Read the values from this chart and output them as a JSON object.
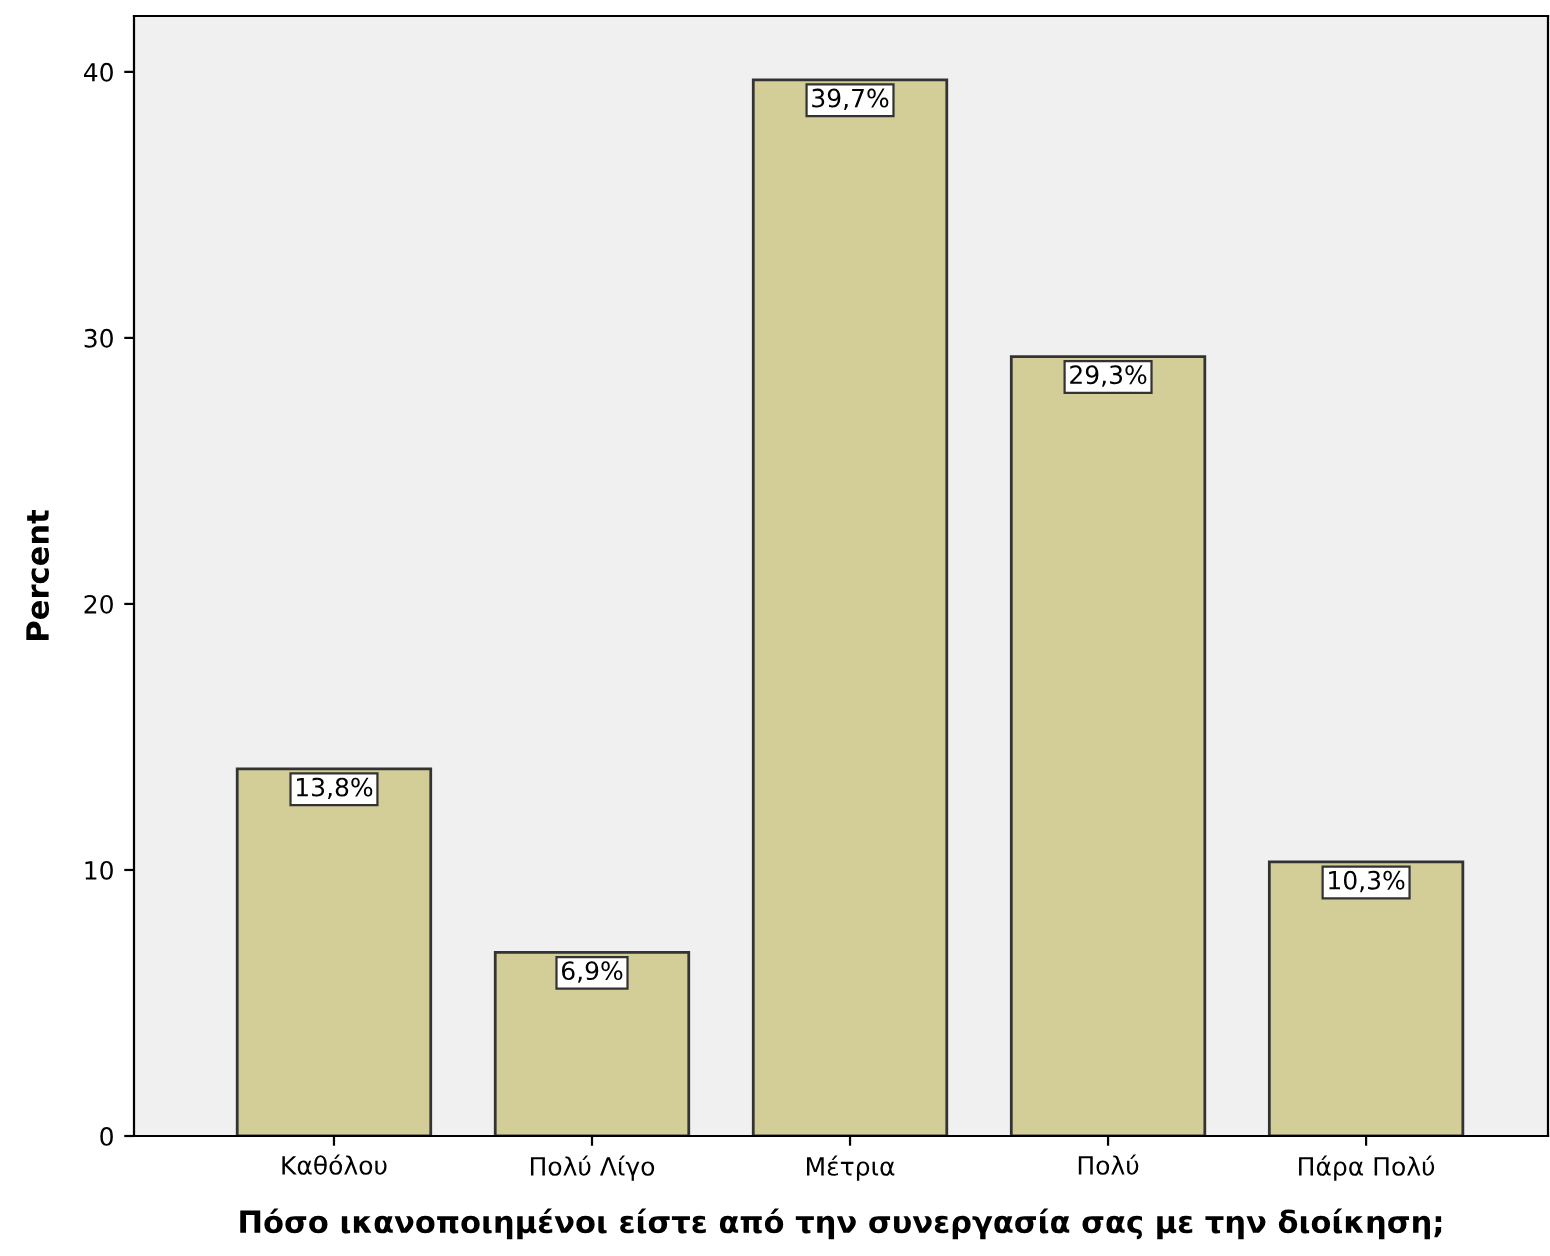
{
  "chart_data": {
    "type": "bar",
    "xlabel": "Πόσο ικανοποιημένοι είστε από την συνεργασία σας με την διοίκηση;",
    "ylabel": "Percent",
    "categories": [
      "Καθόλου",
      "Πολύ Λίγο",
      "Μέτρια",
      "Πολύ",
      "Πάρα Πολύ"
    ],
    "values": [
      13.8,
      6.9,
      39.7,
      29.3,
      10.3
    ],
    "value_labels": [
      "13,8%",
      "6,9%",
      "39,7%",
      "29,3%",
      "10,3%"
    ],
    "color": "#d3ce98",
    "ylim": [
      0,
      42.1
    ],
    "yticks": [
      0,
      10,
      20,
      30,
      40
    ],
    "grid": false
  }
}
